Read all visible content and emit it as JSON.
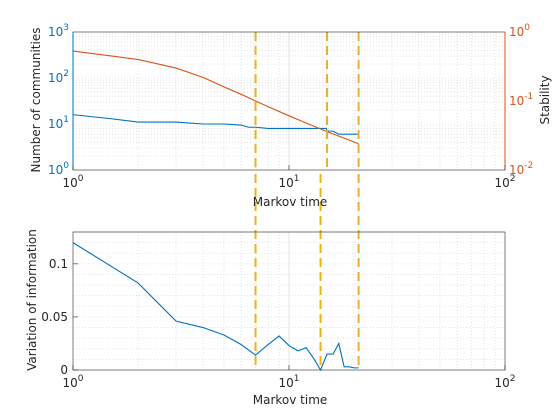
{
  "colors": {
    "series_blue": "#0072bd",
    "series_orange": "#d95319",
    "vline": "#edb120",
    "axis": "#262626",
    "grid": "#dcdcdc"
  },
  "chart_data": [
    {
      "type": "line",
      "x_scale": "log",
      "xlim": [
        1,
        100
      ],
      "xlabel": "Markov time",
      "grid": true,
      "vertical_markers_x": [
        7,
        15,
        21
      ],
      "left_axis": {
        "label": "Number of communities",
        "scale": "log",
        "ylim": [
          1,
          1000
        ],
        "ticks": [
          {
            "v": 1,
            "b": "10",
            "e": "0"
          },
          {
            "v": 10,
            "b": "10",
            "e": "1"
          },
          {
            "v": 100,
            "b": "10",
            "e": "2"
          },
          {
            "v": 1000,
            "b": "10",
            "e": "3"
          }
        ]
      },
      "right_axis": {
        "label": "Stability",
        "scale": "log",
        "ylim": [
          0.01,
          1
        ],
        "ticks": [
          {
            "v": 0.01,
            "b": "10",
            "e": "-2"
          },
          {
            "v": 0.1,
            "b": "10",
            "e": "-1"
          },
          {
            "v": 1,
            "b": "10",
            "e": "0"
          }
        ]
      },
      "x_ticks": [
        {
          "v": 1,
          "b": "10",
          "e": "0"
        },
        {
          "v": 10,
          "b": "10",
          "e": "1"
        },
        {
          "v": 100,
          "b": "10",
          "e": "2"
        }
      ],
      "series": [
        {
          "axis": "left",
          "color": "#0072bd",
          "x": [
            1,
            1.5,
            2,
            3,
            4,
            5,
            6,
            6.5,
            7,
            8,
            10,
            12,
            14.9,
            15,
            16,
            17,
            18,
            21
          ],
          "values": [
            16,
            13,
            11,
            11,
            10,
            10,
            9.5,
            8.5,
            8.5,
            8,
            8,
            8,
            8,
            7,
            7,
            6,
            6,
            6
          ]
        },
        {
          "axis": "right",
          "color": "#d95319",
          "x": [
            1,
            1.5,
            2,
            3,
            4,
            5,
            6,
            7,
            8,
            10,
            12,
            15,
            18,
            21
          ],
          "values": [
            0.53,
            0.45,
            0.4,
            0.3,
            0.22,
            0.16,
            0.125,
            0.1,
            0.083,
            0.061,
            0.048,
            0.036,
            0.029,
            0.024
          ]
        }
      ]
    },
    {
      "type": "line",
      "x_scale": "log",
      "xlim": [
        1,
        100
      ],
      "ylim": [
        0,
        0.13
      ],
      "xlabel": "Markov time",
      "ylabel": "Variation of information",
      "grid": true,
      "vertical_markers_x": [
        7,
        14,
        21
      ],
      "x_ticks": [
        {
          "v": 1,
          "b": "10",
          "e": "0"
        },
        {
          "v": 10,
          "b": "10",
          "e": "1"
        },
        {
          "v": 100,
          "b": "10",
          "e": "2"
        }
      ],
      "y_ticks": [
        {
          "v": 0,
          "label": "0"
        },
        {
          "v": 0.05,
          "label": "0.05"
        },
        {
          "v": 0.1,
          "label": "0.1"
        }
      ],
      "series": [
        {
          "color": "#0072bd",
          "x": [
            1,
            2,
            3,
            4,
            5,
            6,
            7,
            8,
            9,
            10,
            11,
            12,
            13,
            14,
            15,
            16,
            17,
            18,
            19,
            20,
            21
          ],
          "values": [
            0.12,
            0.082,
            0.046,
            0.04,
            0.033,
            0.024,
            0.014,
            0.024,
            0.032,
            0.023,
            0.018,
            0.021,
            0.011,
            0,
            0.015,
            0.015,
            0.025,
            0.003,
            0.003,
            0.002,
            0.002
          ]
        }
      ]
    }
  ]
}
